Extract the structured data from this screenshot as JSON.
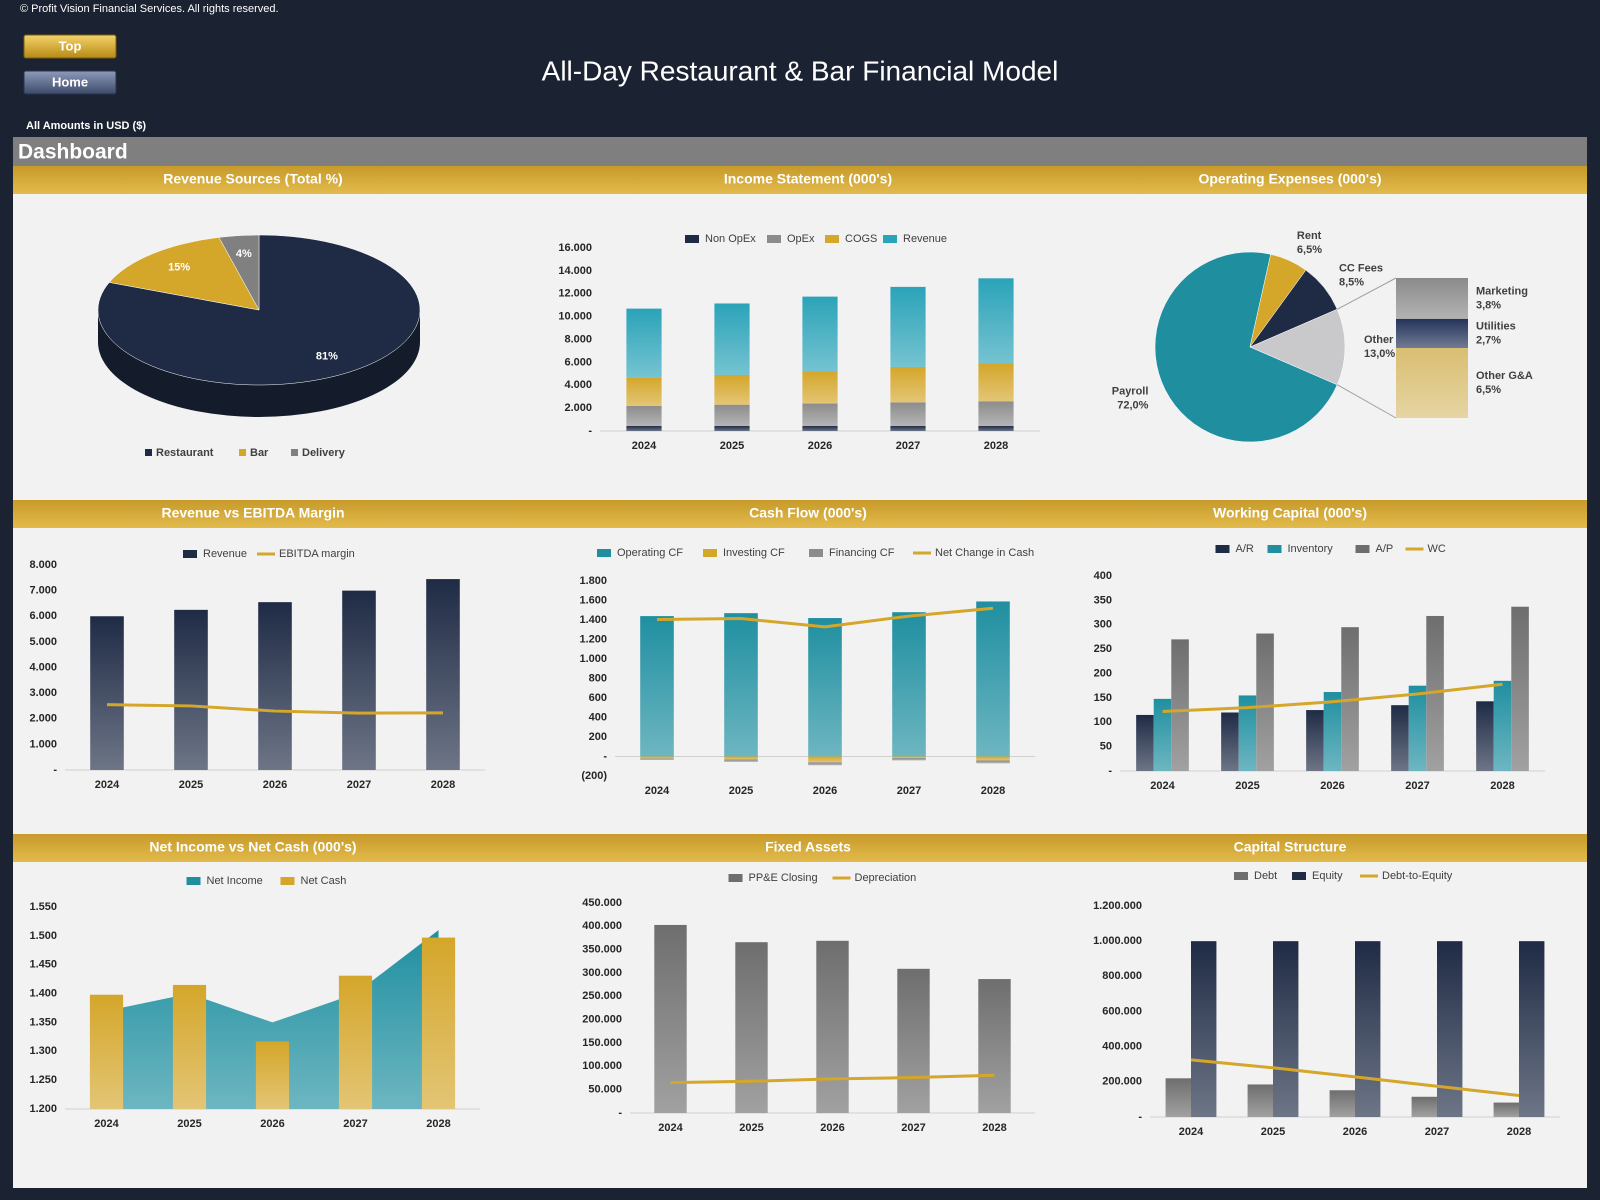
{
  "header": {
    "copyright": "© Profit Vision Financial Services. All rights reserved.",
    "title": "All-Day Restaurant & Bar Financial Model",
    "amounts": "All Amounts in  USD ($)",
    "section": "Dashboard"
  },
  "nav": {
    "top": "Top",
    "home": "Home"
  },
  "chart_data": [
    {
      "type": "pie",
      "title": "Revenue Sources (Total %)",
      "categories": [
        "Restaurant",
        "Bar",
        "Delivery"
      ],
      "values": [
        81,
        15,
        4
      ],
      "value_labels": [
        "81%",
        "15%",
        "4%"
      ],
      "colors": [
        "#1f2b45",
        "#d4a62a",
        "#808080"
      ],
      "legend": "bottom"
    },
    {
      "type": "bar",
      "stacked": true,
      "title": "Income Statement (000's)",
      "categories": [
        "2024",
        "2025",
        "2026",
        "2027",
        "2028"
      ],
      "series": [
        {
          "name": "Non OpEx",
          "color": "#1f2b45",
          "values": [
            450,
            450,
            450,
            450,
            450
          ]
        },
        {
          "name": "OpEx",
          "color": "#8c8c8c",
          "values": [
            1750,
            1850,
            1950,
            2050,
            2150
          ]
        },
        {
          "name": "COGS",
          "color": "#d4a62a",
          "values": [
            2500,
            2600,
            2800,
            3100,
            3300
          ]
        },
        {
          "name": "Revenue",
          "color": "#2ba3b8",
          "values": [
            6000,
            6250,
            6550,
            7000,
            7450
          ]
        }
      ],
      "ylim": [
        0,
        16000
      ],
      "yticks": [
        {
          "value": 0,
          "label": "-"
        },
        {
          "value": 2000,
          "label": "2.000"
        },
        {
          "value": 4000,
          "label": "4.000"
        },
        {
          "value": 6000,
          "label": "6.000"
        },
        {
          "value": 8000,
          "label": "8.000"
        },
        {
          "value": 10000,
          "label": "10.000"
        },
        {
          "value": 12000,
          "label": "12.000"
        },
        {
          "value": 14000,
          "label": "14.000"
        },
        {
          "value": 16000,
          "label": "16.000"
        }
      ],
      "legend": "top"
    },
    {
      "type": "pie-of-pie",
      "title": "Operating Expenses (000's)",
      "categories": [
        "Payroll",
        "Rent",
        "CC Fees",
        "Other"
      ],
      "values": [
        72,
        6.5,
        8.5,
        13
      ],
      "value_labels": [
        "72,0%",
        "6,5%",
        "8,5%",
        "13,0%"
      ],
      "colors": [
        "#1f8fa0",
        "#d4a62a",
        "#1f2b45",
        "#c9c9cc"
      ],
      "sub_categories": [
        "Marketing",
        "Utilities",
        "Other G&A"
      ],
      "sub_values": [
        3.8,
        2.7,
        6.5
      ],
      "sub_value_labels": [
        "3,8%",
        "2,7%",
        "6,5%"
      ],
      "sub_colors": [
        "#8a8a8a",
        "#24345a",
        "#d9be72"
      ]
    },
    {
      "type": "bar",
      "title": "Revenue vs EBITDA Margin",
      "categories": [
        "2024",
        "2025",
        "2026",
        "2027",
        "2028"
      ],
      "series": [
        {
          "name": "Revenue",
          "color": "#1f2b45",
          "values": [
            6000,
            6250,
            6550,
            7000,
            7450
          ]
        },
        {
          "name": "EBITDA margin",
          "type": "line",
          "color": "#d4a62a",
          "values": [
            2550,
            2500,
            2300,
            2220,
            2230
          ]
        }
      ],
      "ylim": [
        0,
        8000
      ],
      "yticks": [
        {
          "value": 0,
          "label": "-"
        },
        {
          "value": 1000,
          "label": "1.000"
        },
        {
          "value": 2000,
          "label": "2.000"
        },
        {
          "value": 3000,
          "label": "3.000"
        },
        {
          "value": 4000,
          "label": "4.000"
        },
        {
          "value": 5000,
          "label": "5.000"
        },
        {
          "value": 6000,
          "label": "6.000"
        },
        {
          "value": 7000,
          "label": "7.000"
        },
        {
          "value": 8000,
          "label": "8.000"
        }
      ],
      "legend": "top"
    },
    {
      "type": "bar",
      "stacked": true,
      "title": "Cash Flow (000's)",
      "categories": [
        "2024",
        "2025",
        "2026",
        "2027",
        "2028"
      ],
      "series": [
        {
          "name": "Operating CF",
          "color": "#1f8fa0",
          "values": [
            1440,
            1470,
            1420,
            1480,
            1590
          ]
        },
        {
          "name": "Investing CF",
          "color": "#d4a62a",
          "values": [
            -20,
            -30,
            -60,
            -15,
            -40
          ]
        },
        {
          "name": "Financing CF",
          "color": "#8c8c8c",
          "values": [
            -15,
            -25,
            -30,
            -25,
            -30
          ]
        },
        {
          "name": "Net Change in Cash",
          "type": "line",
          "color": "#d4a62a",
          "values": [
            1405,
            1415,
            1330,
            1440,
            1520
          ]
        }
      ],
      "ylim": [
        -200,
        1800
      ],
      "yticks": [
        {
          "value": -200,
          "label": "(200)"
        },
        {
          "value": 0,
          "label": "-"
        },
        200,
        400,
        600,
        800,
        {
          "value": 1000,
          "label": "1.000"
        },
        {
          "value": 1200,
          "label": "1.200"
        },
        {
          "value": 1400,
          "label": "1.400"
        },
        {
          "value": 1600,
          "label": "1.600"
        },
        {
          "value": 1800,
          "label": "1.800"
        }
      ],
      "legend": "top"
    },
    {
      "type": "bar",
      "title": "Working Capital (000's)",
      "categories": [
        "2024",
        "2025",
        "2026",
        "2027",
        "2028"
      ],
      "series": [
        {
          "name": "A/R",
          "color": "#1f2b45",
          "values": [
            115,
            120,
            125,
            135,
            143
          ]
        },
        {
          "name": "Inventory",
          "color": "#1f8fa0",
          "values": [
            148,
            155,
            162,
            175,
            185
          ]
        },
        {
          "name": "A/P",
          "color": "#6e6e6e",
          "values": [
            270,
            282,
            295,
            318,
            337
          ]
        },
        {
          "name": "WC",
          "type": "line",
          "color": "#d4a62a",
          "values": [
            122,
            130,
            142,
            158,
            178
          ]
        }
      ],
      "ylim": [
        0,
        400
      ],
      "yticks": [
        {
          "value": 0,
          "label": "-"
        },
        50,
        100,
        150,
        200,
        250,
        300,
        350,
        400
      ],
      "legend": "top"
    },
    {
      "type": "bar",
      "title": "Net Income vs Net Cash (000's)",
      "categories": [
        "2024",
        "2025",
        "2026",
        "2027",
        "2028"
      ],
      "series": [
        {
          "name": "Net Income",
          "type": "area",
          "color": "#1f8fa0",
          "values": [
            1370,
            1400,
            1350,
            1400,
            1510
          ]
        },
        {
          "name": "Net Cash",
          "color": "#d4a62a",
          "values": [
            1398,
            1415,
            1317,
            1431,
            1497
          ]
        }
      ],
      "ylim": [
        1200,
        1550
      ],
      "yticks": [
        {
          "value": 1200,
          "label": "1.200"
        },
        {
          "value": 1250,
          "label": "1.250"
        },
        {
          "value": 1300,
          "label": "1.300"
        },
        {
          "value": 1350,
          "label": "1.350"
        },
        {
          "value": 1400,
          "label": "1.400"
        },
        {
          "value": 1450,
          "label": "1.450"
        },
        {
          "value": 1500,
          "label": "1.500"
        },
        {
          "value": 1550,
          "label": "1.550"
        }
      ],
      "legend": "top"
    },
    {
      "type": "bar",
      "title": "Fixed Assets",
      "categories": [
        "2024",
        "2025",
        "2026",
        "2027",
        "2028"
      ],
      "series": [
        {
          "name": "PP&E Closing",
          "color": "#6e6e6e",
          "values": [
            403000,
            366000,
            369000,
            309000,
            287000
          ]
        },
        {
          "name": "Depreciation",
          "type": "line",
          "color": "#d4a62a",
          "values": [
            65000,
            68000,
            73000,
            76000,
            81000
          ]
        }
      ],
      "ylim": [
        0,
        450000
      ],
      "yticks": [
        {
          "value": 0,
          "label": "-"
        },
        {
          "value": 50000,
          "label": "50.000"
        },
        {
          "value": 100000,
          "label": "100.000"
        },
        {
          "value": 150000,
          "label": "150.000"
        },
        {
          "value": 200000,
          "label": "200.000"
        },
        {
          "value": 250000,
          "label": "250.000"
        },
        {
          "value": 300000,
          "label": "300.000"
        },
        {
          "value": 350000,
          "label": "350.000"
        },
        {
          "value": 400000,
          "label": "400.000"
        },
        {
          "value": 450000,
          "label": "450.000"
        }
      ],
      "legend": "top"
    },
    {
      "type": "bar",
      "title": "Capital Structure",
      "categories": [
        "2024",
        "2025",
        "2026",
        "2027",
        "2028"
      ],
      "series": [
        {
          "name": "Debt",
          "color": "#6e6e6e",
          "values": [
            220000,
            185000,
            152000,
            115000,
            82000
          ]
        },
        {
          "name": "Equity",
          "color": "#1f2b45",
          "values": [
            1000000,
            1000000,
            1000000,
            1000000,
            1000000
          ]
        },
        {
          "name": "Debt-to-Equity",
          "type": "line",
          "color": "#d4a62a",
          "values": [
            325000,
            280000,
            228000,
            175000,
            122000
          ]
        }
      ],
      "ylim": [
        0,
        1200000
      ],
      "yticks": [
        {
          "value": 0,
          "label": "-"
        },
        {
          "value": 200000,
          "label": "200.000"
        },
        {
          "value": 400000,
          "label": "400.000"
        },
        {
          "value": 600000,
          "label": "600.000"
        },
        {
          "value": 800000,
          "label": "800.000"
        },
        {
          "value": 1000000,
          "label": "1.000.000"
        },
        {
          "value": 1200000,
          "label": "1.200.000"
        }
      ],
      "legend": "top"
    }
  ]
}
